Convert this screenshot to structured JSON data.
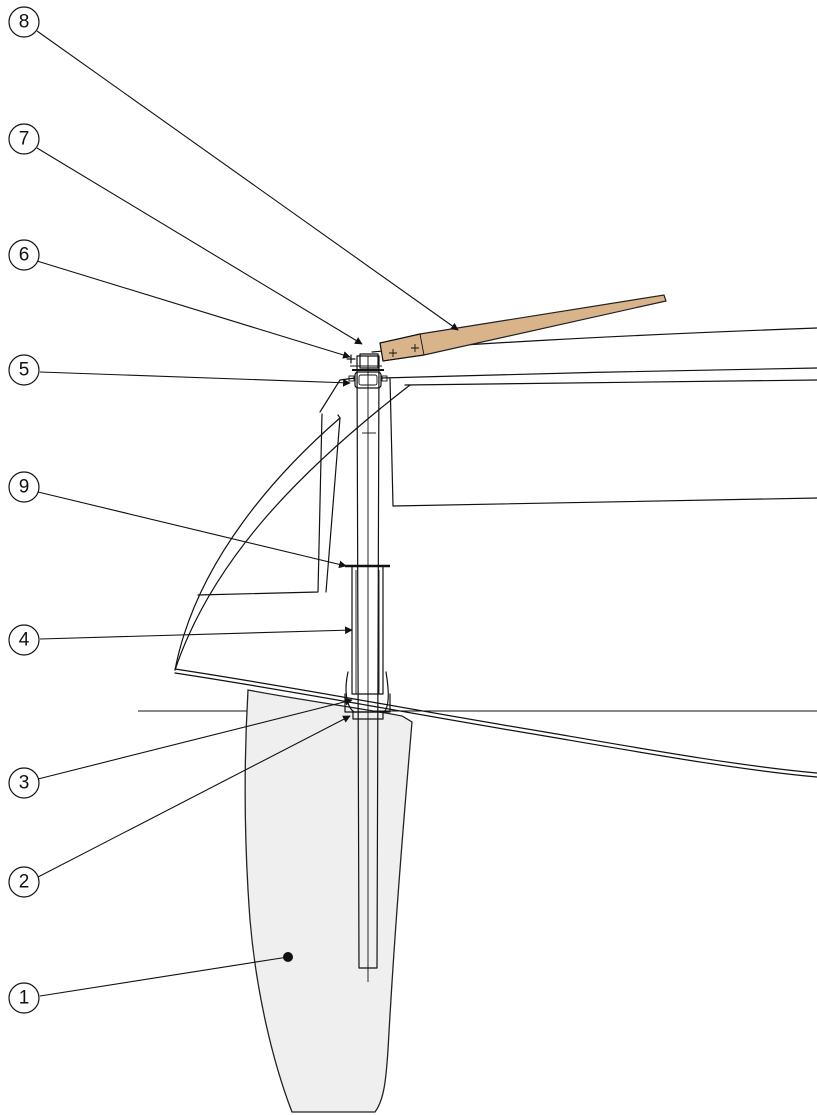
{
  "colors": {
    "rudder_blade": "#efefef",
    "tiller": "#d9b48a",
    "line": "#111111"
  },
  "callouts": [
    {
      "label": "8",
      "icon": "callout-circle"
    },
    {
      "label": "7",
      "icon": "callout-circle"
    },
    {
      "label": "6",
      "icon": "callout-circle"
    },
    {
      "label": "5",
      "icon": "callout-circle"
    },
    {
      "label": "9",
      "icon": "callout-circle"
    },
    {
      "label": "4",
      "icon": "callout-circle"
    },
    {
      "label": "3",
      "icon": "callout-circle"
    },
    {
      "label": "2",
      "icon": "callout-circle"
    },
    {
      "label": "1",
      "icon": "callout-circle"
    }
  ]
}
